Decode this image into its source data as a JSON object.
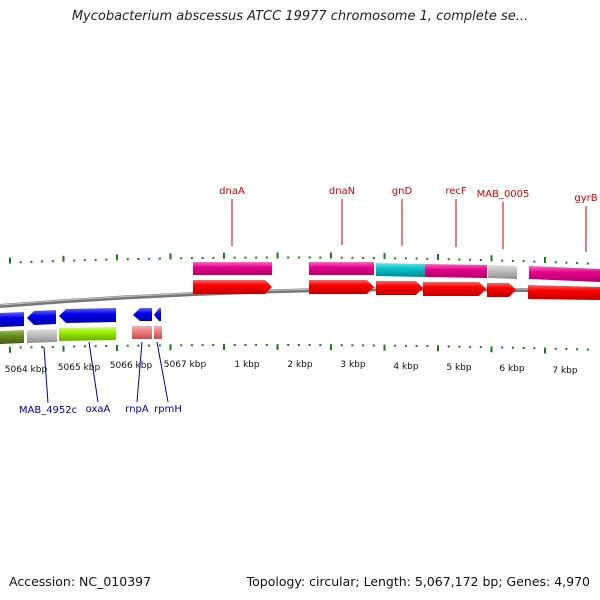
{
  "header": {
    "title": "Mycobacterium abscessus ATCC 19977 chromosome 1, complete se..."
  },
  "footer": {
    "accession": "Accession: NC_010397",
    "topology": "Topology: circular; Length: 5,067,172 bp; Genes: 4,970"
  },
  "scale_labels": [
    "5064 kbp",
    "5065 kbp",
    "5066 kbp",
    "5067 kbp",
    "1 kbp",
    "2 kbp",
    "3 kbp",
    "4 kbp",
    "5 kbp",
    "6 kbp",
    "7 kbp"
  ],
  "genes_top": [
    "dnaA",
    "dnaN",
    "gnD",
    "recF",
    "MAB_0005",
    "gyrB"
  ],
  "genes_bottom": [
    "MAB_4952c",
    "oxaA",
    "rnpA",
    "rpmH"
  ],
  "colors": {
    "forward_gene": "#ff0000",
    "forward_cds": "#e6008a",
    "cyan_cds": "#00c0c8",
    "gray_cds": "#c0c0c0",
    "reverse_gene": "#0000ee",
    "reverse_cds_green": "#99ee00",
    "reverse_cds_olive": "#6b8e23",
    "reverse_pink": "#f08080",
    "backbone": "#888888",
    "tick": "#1a7a1a",
    "label_top": "#cc0000",
    "label_bottom": "#0000aa"
  }
}
